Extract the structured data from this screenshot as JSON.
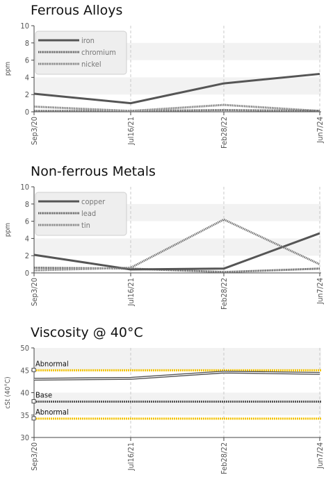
{
  "chart_data": [
    {
      "type": "line",
      "title": "Ferrous Alloys",
      "ylabel": "ppm",
      "xlabel": "",
      "ylim": [
        0,
        10
      ],
      "yticks": [
        0,
        2,
        4,
        6,
        8,
        10
      ],
      "categories": [
        "Sep3/20",
        "Jul16/21",
        "Feb28/22",
        "Jun7/24"
      ],
      "grid": true,
      "legend_position": "top-left",
      "series": [
        {
          "name": "iron",
          "values": [
            2.1,
            1.0,
            3.3,
            4.4
          ],
          "style": "solid",
          "color": "#555555"
        },
        {
          "name": "chromium",
          "values": [
            0.1,
            0.1,
            0.2,
            0.1
          ],
          "style": "dotted",
          "color": "#555555"
        },
        {
          "name": "nickel",
          "values": [
            0.6,
            0.1,
            0.8,
            0.1
          ],
          "style": "dotted",
          "color": "#777777"
        }
      ]
    },
    {
      "type": "line",
      "title": "Non-ferrous Metals",
      "ylabel": "ppm",
      "xlabel": "",
      "ylim": [
        0,
        10
      ],
      "yticks": [
        0,
        2,
        4,
        6,
        8,
        10
      ],
      "categories": [
        "Sep3/20",
        "Jul16/21",
        "Feb28/22",
        "Jun7/24"
      ],
      "grid": true,
      "legend_position": "top-left",
      "series": [
        {
          "name": "copper",
          "values": [
            2.1,
            0.4,
            0.5,
            4.6
          ],
          "style": "solid",
          "color": "#555555"
        },
        {
          "name": "lead",
          "values": [
            0.6,
            0.5,
            0.1,
            0.5
          ],
          "style": "dotted",
          "color": "#555555"
        },
        {
          "name": "tin",
          "values": [
            0.3,
            0.6,
            6.2,
            1.0
          ],
          "style": "dotted",
          "color": "#777777"
        }
      ]
    },
    {
      "type": "line",
      "title": "Viscosity @ 40°C",
      "ylabel": "cSt (40°C)",
      "xlabel": "",
      "ylim": [
        30,
        50
      ],
      "yticks": [
        30,
        35,
        40,
        45,
        50
      ],
      "categories": [
        "Sep3/20",
        "Jul16/21",
        "Feb28/22",
        "Jun7/24"
      ],
      "grid": true,
      "series": [
        {
          "name": "",
          "values": [
            43.0,
            43.2,
            44.6,
            44.3
          ],
          "style": "double",
          "color": "#555555"
        }
      ],
      "reference_lines": [
        {
          "label": "Abnormal",
          "value": 45.0,
          "color": "#f2c200",
          "style": "dotted"
        },
        {
          "label": "Base",
          "value": 38.0,
          "color": "#555555",
          "style": "dotted"
        },
        {
          "label": "Abnormal",
          "value": 34.2,
          "color": "#f2c200",
          "style": "dotted"
        }
      ]
    }
  ]
}
